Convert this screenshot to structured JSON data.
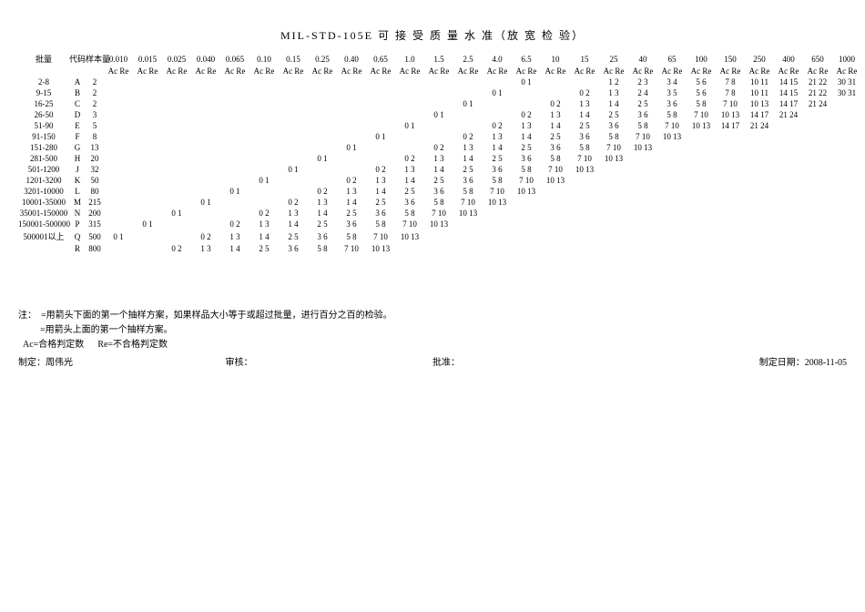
{
  "title": "MIL-STD-105E 可 接 受 质 量 水 准（放 宽 检 验）",
  "headers": {
    "batch": "批量",
    "code": "代码",
    "n": "样本量",
    "aql_levels": [
      "0.010",
      "0.015",
      "0.025",
      "0.040",
      "0.065",
      "0.10",
      "0.15",
      "0.25",
      "0.40",
      "0.65",
      "1.0",
      "1.5",
      "2.5",
      "4.0",
      "6.5",
      "10",
      "15",
      "25",
      "40",
      "65",
      "100",
      "150",
      "250",
      "400",
      "650",
      "1000"
    ],
    "acre": "Ac Re"
  },
  "rows": [
    {
      "batch": "2-8",
      "code": "A",
      "n": "2",
      "cells": [
        "",
        "",
        "",
        "",
        "",
        "",
        "",
        "",
        "",
        "",
        "",
        "",
        "",
        "",
        "0 1",
        "",
        "",
        "1 2",
        "2 3",
        "3 4",
        "5 6",
        "7 8",
        "10 11",
        "14 15",
        "21 22",
        "30 31"
      ]
    },
    {
      "batch": "9-15",
      "code": "B",
      "n": "2",
      "cells": [
        "",
        "",
        "",
        "",
        "",
        "",
        "",
        "",
        "",
        "",
        "",
        "",
        "",
        "0 1",
        "",
        "",
        "0 2",
        "1 3",
        "2 4",
        "3 5",
        "5 6",
        "7 8",
        "10 11",
        "14 15",
        "21 22",
        "30 31"
      ]
    },
    {
      "batch": "16-25",
      "code": "C",
      "n": "2",
      "cells": [
        "",
        "",
        "",
        "",
        "",
        "",
        "",
        "",
        "",
        "",
        "",
        "",
        "0 1",
        "",
        "",
        "0 2",
        "1 3",
        "1 4",
        "2 5",
        "3 6",
        "5 8",
        "7 10",
        "10 13",
        "14 17",
        "21 24",
        ""
      ]
    },
    {
      "batch": "26-50",
      "code": "D",
      "n": "3",
      "cells": [
        "",
        "",
        "",
        "",
        "",
        "",
        "",
        "",
        "",
        "",
        "",
        "0 1",
        "",
        "",
        "0 2",
        "1 3",
        "1 4",
        "2 5",
        "3 6",
        "5 8",
        "7 10",
        "10 13",
        "14 17",
        "21 24",
        "",
        ""
      ]
    },
    {
      "batch": "51-90",
      "code": "E",
      "n": "5",
      "cells": [
        "",
        "",
        "",
        "",
        "",
        "",
        "",
        "",
        "",
        "",
        "0 1",
        "",
        "",
        "0 2",
        "1 3",
        "1 4",
        "2 5",
        "3 6",
        "5 8",
        "7 10",
        "10 13",
        "14 17",
        "21 24",
        "",
        "",
        ""
      ]
    },
    {
      "batch": "91-150",
      "code": "F",
      "n": "8",
      "cells": [
        "",
        "",
        "",
        "",
        "",
        "",
        "",
        "",
        "",
        "0 1",
        "",
        "",
        "0 2",
        "1 3",
        "1 4",
        "2 5",
        "3 6",
        "5 8",
        "7 10",
        "10 13",
        "",
        "",
        "",
        "",
        "",
        ""
      ]
    },
    {
      "batch": "151-280",
      "code": "G",
      "n": "13",
      "cells": [
        "",
        "",
        "",
        "",
        "",
        "",
        "",
        "",
        "0 1",
        "",
        "",
        "0 2",
        "1 3",
        "1 4",
        "2 5",
        "3 6",
        "5 8",
        "7 10",
        "10 13",
        "",
        "",
        "",
        "",
        "",
        "",
        ""
      ]
    },
    {
      "batch": "281-500",
      "code": "H",
      "n": "20",
      "cells": [
        "",
        "",
        "",
        "",
        "",
        "",
        "",
        "0 1",
        "",
        "",
        "0 2",
        "1 3",
        "1 4",
        "2 5",
        "3 6",
        "5 8",
        "7 10",
        "10 13",
        "",
        "",
        "",
        "",
        "",
        "",
        "",
        ""
      ]
    },
    {
      "batch": "501-1200",
      "code": "J",
      "n": "32",
      "cells": [
        "",
        "",
        "",
        "",
        "",
        "",
        "0 1",
        "",
        "",
        "0 2",
        "1 3",
        "1 4",
        "2 5",
        "3 6",
        "5 8",
        "7 10",
        "10 13",
        "",
        "",
        "",
        "",
        "",
        "",
        "",
        "",
        ""
      ]
    },
    {
      "batch": "1201-3200",
      "code": "K",
      "n": "50",
      "cells": [
        "",
        "",
        "",
        "",
        "",
        "0 1",
        "",
        "",
        "0 2",
        "1 3",
        "1 4",
        "2 5",
        "3 6",
        "5 8",
        "7 10",
        "10 13",
        "",
        "",
        "",
        "",
        "",
        "",
        "",
        "",
        "",
        ""
      ]
    },
    {
      "batch": "3201-10000",
      "code": "L",
      "n": "80",
      "cells": [
        "",
        "",
        "",
        "",
        "0 1",
        "",
        "",
        "0 2",
        "1 3",
        "1 4",
        "2 5",
        "3 6",
        "5 8",
        "7 10",
        "10 13",
        "",
        "",
        "",
        "",
        "",
        "",
        "",
        "",
        "",
        "",
        ""
      ]
    },
    {
      "batch": "10001-35000",
      "code": "M",
      "n": "215",
      "cells": [
        "",
        "",
        "",
        "0 1",
        "",
        "",
        "0 2",
        "1 3",
        "1 4",
        "2 5",
        "3 6",
        "5 8",
        "7 10",
        "10 13",
        "",
        "",
        "",
        "",
        "",
        "",
        "",
        "",
        "",
        "",
        "",
        ""
      ]
    },
    {
      "batch": "35001-150000",
      "code": "N",
      "n": "200",
      "cells": [
        "",
        "",
        "0 1",
        "",
        "",
        "0 2",
        "1 3",
        "1 4",
        "2 5",
        "3 6",
        "5 8",
        "7 10",
        "10 13",
        "",
        "",
        "",
        "",
        "",
        "",
        "",
        "",
        "",
        "",
        "",
        "",
        ""
      ]
    },
    {
      "batch": "150001-500000",
      "code": "P",
      "n": "315",
      "cells": [
        "",
        "0 1",
        "",
        "",
        "0 2",
        "1 3",
        "1 4",
        "2 5",
        "3 6",
        "5 8",
        "7 10",
        "10 13",
        "",
        "",
        "",
        "",
        "",
        "",
        "",
        "",
        "",
        "",
        "",
        "",
        "",
        ""
      ]
    },
    {
      "batch": "500001以上",
      "code": "Q",
      "n": "500",
      "cells": [
        "0 1",
        "",
        "",
        "0 2",
        "1 3",
        "1 4",
        "2 5",
        "3 6",
        "5 8",
        "7 10",
        "10 13",
        "",
        "",
        "",
        "",
        "",
        "",
        "",
        "",
        "",
        "",
        "",
        "",
        "",
        "",
        ""
      ]
    },
    {
      "batch": "",
      "code": "R",
      "n": "800",
      "cells": [
        "",
        "",
        "0 2",
        "1 3",
        "1 4",
        "2 5",
        "3 6",
        "5 8",
        "7 10",
        "10 13",
        "",
        "",
        "",
        "",
        "",
        "",
        "",
        "",
        "",
        "",
        "",
        "",
        "",
        "",
        "",
        ""
      ]
    }
  ],
  "notes": {
    "prefix": "注：",
    "line1": "=用箭头下面的第一个抽样方案，如果样品大小等于或超过批量，进行百分之百的检验。",
    "line2": "=用箭头上面的第一个抽样方案。",
    "ac": "Ac=合格判定数",
    "re": "Re=不合格判定数"
  },
  "signatures": {
    "made_by_label": "制定：",
    "made_by": "周伟光",
    "review": "审核：",
    "approve": "批准：",
    "date_label": "制定日期：",
    "date": "2008-11-05"
  },
  "style": {
    "bg": "#ffffff",
    "text": "#000000",
    "title_fontsize": 12,
    "body_fontsize": 10,
    "cell_fontsize": 9
  }
}
